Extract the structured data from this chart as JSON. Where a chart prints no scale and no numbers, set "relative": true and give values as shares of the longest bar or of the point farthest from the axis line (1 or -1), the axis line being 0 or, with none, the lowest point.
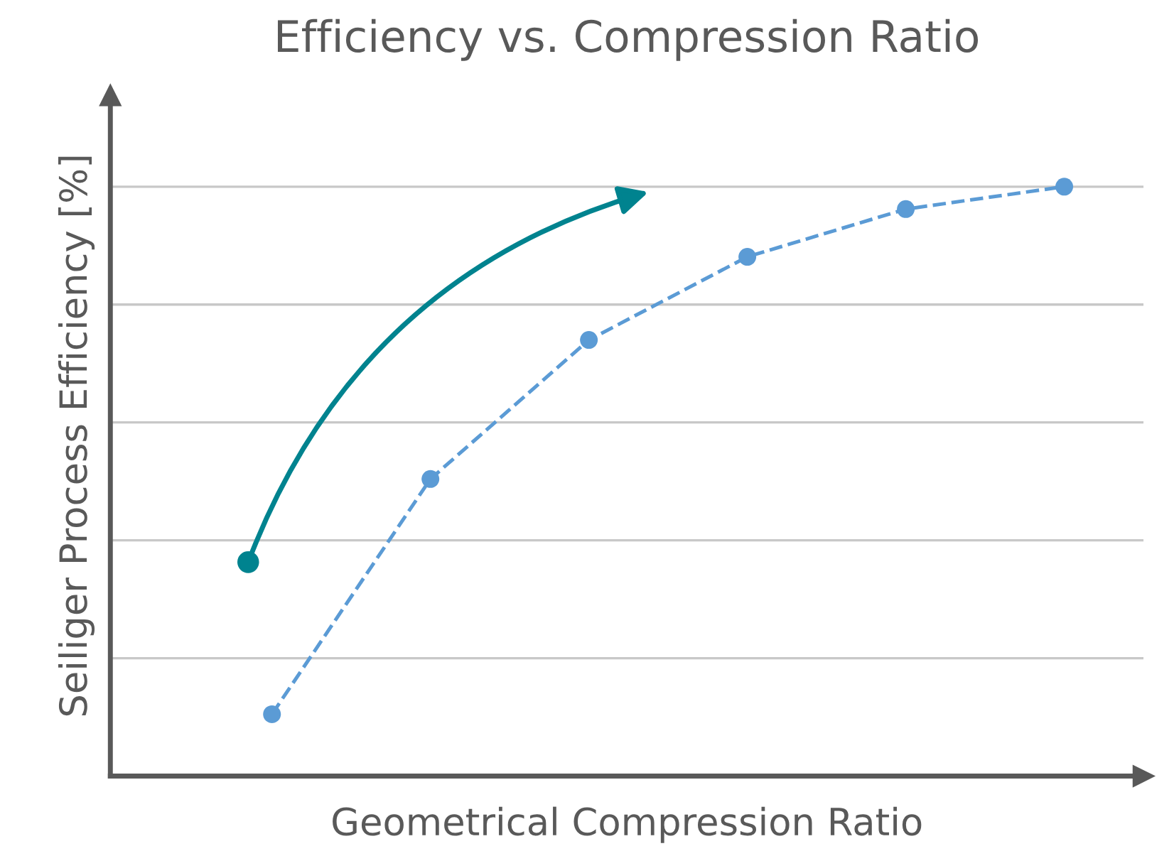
{
  "chart_data": {
    "type": "line",
    "title": "Efficiency vs. Compression Ratio",
    "xlabel": "Geometrical Compression Ratio",
    "ylabel": "Seiliger Process Efficiency [%]",
    "categories": [
      null,
      null,
      null,
      null,
      null,
      null
    ],
    "series": [
      {
        "color": "#5b9bd5",
        "values": [
          0.105,
          0.504,
          0.74,
          0.881,
          0.962,
          1.0
        ]
      }
    ],
    "relative": true,
    "grid": "y",
    "marker": "circle",
    "line_style": "dashed"
  }
}
